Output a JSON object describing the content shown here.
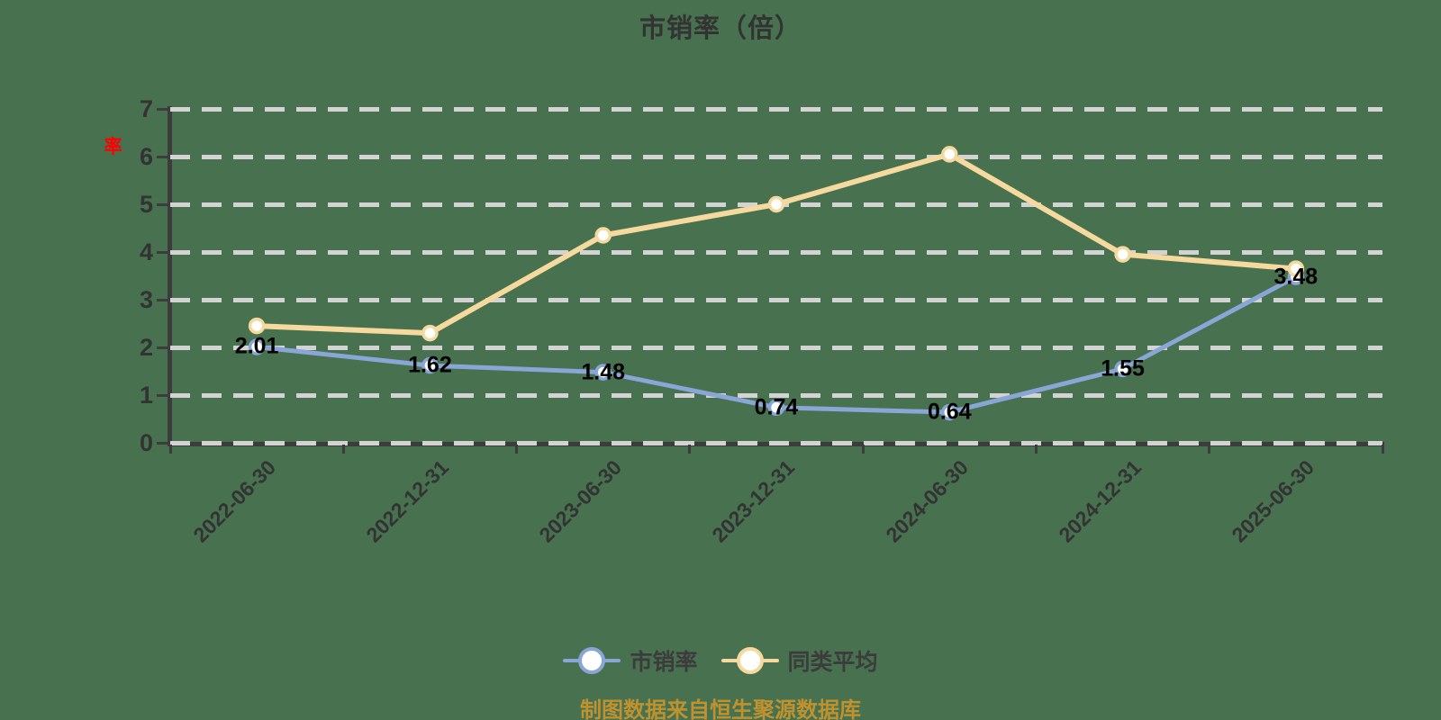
{
  "title": "市销率（倍）",
  "y_axis": {
    "name": "率",
    "name_color": "#FF0000",
    "ticks": [
      0,
      1,
      2,
      3,
      4,
      5,
      6,
      7
    ],
    "max": 7
  },
  "x_axis": {
    "categories": [
      "2022-06-30",
      "2022-12-31",
      "2023-06-30",
      "2023-12-31",
      "2024-06-30",
      "2024-12-31",
      "2025-06-30"
    ]
  },
  "chart_data": {
    "type": "line",
    "title": "市销率（倍）",
    "categories": [
      "2022-06-30",
      "2022-12-31",
      "2023-06-30",
      "2023-12-31",
      "2024-06-30",
      "2024-12-31",
      "2025-06-30"
    ],
    "series": [
      {
        "name": "市销率",
        "color": "#8AA6D6",
        "values": [
          2.01,
          1.62,
          1.48,
          0.74,
          0.64,
          1.55,
          3.48
        ],
        "data_labels": [
          "2.01",
          "1.62",
          "1.48",
          "0.74",
          "0.64",
          "1.55",
          "3.48"
        ],
        "show_labels": true,
        "marker": "circle-white-fill",
        "line_width": 5
      },
      {
        "name": "同类平均",
        "color": "#F5D99E",
        "values": [
          2.45,
          2.3,
          4.35,
          5.0,
          6.05,
          3.95,
          3.65
        ],
        "data_labels": [],
        "show_labels": false,
        "marker": "circle-white-fill",
        "line_width": 6
      }
    ],
    "ylim": [
      0,
      7
    ],
    "xlabel": "",
    "ylabel": "率",
    "grid": "horizontal-dashed",
    "legend_position": "bottom",
    "x_label_rotation": 45
  },
  "legend": {
    "items": [
      {
        "label": "市销率",
        "color": "#8AA6D6"
      },
      {
        "label": "同类平均",
        "color": "#F5D99E"
      }
    ]
  },
  "footer": {
    "text": "制图数据来自恒生聚源数据库",
    "color": "#C0922F"
  },
  "colors": {
    "background": "#47714F",
    "text": "#333333",
    "gridline": "#D3D3D3",
    "axis": "#3C3C3C",
    "data_label": "#000000"
  }
}
